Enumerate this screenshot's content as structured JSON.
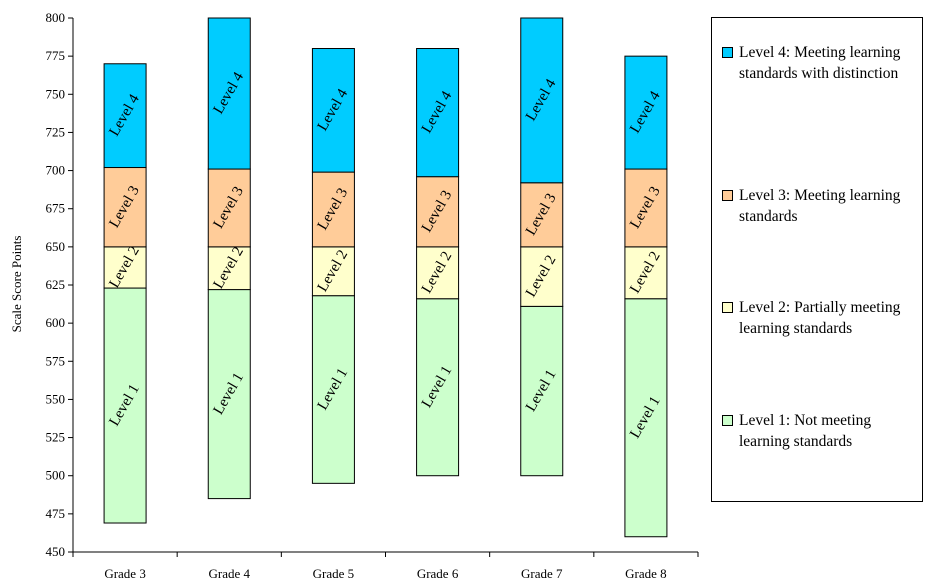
{
  "chart_data": {
    "type": "bar",
    "stacked": true,
    "floating": true,
    "title": "",
    "xlabel": "",
    "ylabel": "Scale Score Points",
    "ylim": [
      450,
      800
    ],
    "yticks": [
      450,
      475,
      500,
      525,
      550,
      575,
      600,
      625,
      650,
      675,
      700,
      725,
      750,
      775,
      800
    ],
    "categories": [
      "Grade 3",
      "Grade 4",
      "Grade 5",
      "Grade 6",
      "Grade 7",
      "Grade 8"
    ],
    "series": [
      {
        "name": "Level 1: Not meeting learning standards",
        "label": "Level 1",
        "color": "#ccffcc",
        "ranges": [
          [
            469,
            623
          ],
          [
            485,
            622
          ],
          [
            495,
            618
          ],
          [
            500,
            616
          ],
          [
            500,
            611
          ],
          [
            460,
            616
          ]
        ]
      },
      {
        "name": "Level 2: Partially meeting learning standards",
        "label": "Level 2",
        "color": "#ffffcc",
        "ranges": [
          [
            623,
            650
          ],
          [
            622,
            650
          ],
          [
            618,
            650
          ],
          [
            616,
            650
          ],
          [
            611,
            650
          ],
          [
            616,
            650
          ]
        ]
      },
      {
        "name": "Level 3: Meeting learning standards",
        "label": "Level 3",
        "color": "#ffcc99",
        "ranges": [
          [
            650,
            702
          ],
          [
            650,
            701
          ],
          [
            650,
            699
          ],
          [
            650,
            696
          ],
          [
            650,
            692
          ],
          [
            650,
            701
          ]
        ]
      },
      {
        "name": "Level 4: Meeting learning standards with distinction",
        "label": "Level 4",
        "color": "#00ccff",
        "ranges": [
          [
            702,
            770
          ],
          [
            701,
            800
          ],
          [
            699,
            780
          ],
          [
            696,
            780
          ],
          [
            692,
            800
          ],
          [
            701,
            775
          ]
        ]
      }
    ],
    "grid": false,
    "legend_position": "right"
  },
  "legend": [
    {
      "text": "Level 4:  Meeting learning standards with distinction",
      "color": "#00ccff"
    },
    {
      "text": "Level 3:  Meeting learning standards",
      "color": "#ffcc99"
    },
    {
      "text": "Level 2:  Partially meeting learning standards",
      "color": "#ffffcc"
    },
    {
      "text": "Level 1:  Not meeting learning standards",
      "color": "#ccffcc"
    }
  ]
}
